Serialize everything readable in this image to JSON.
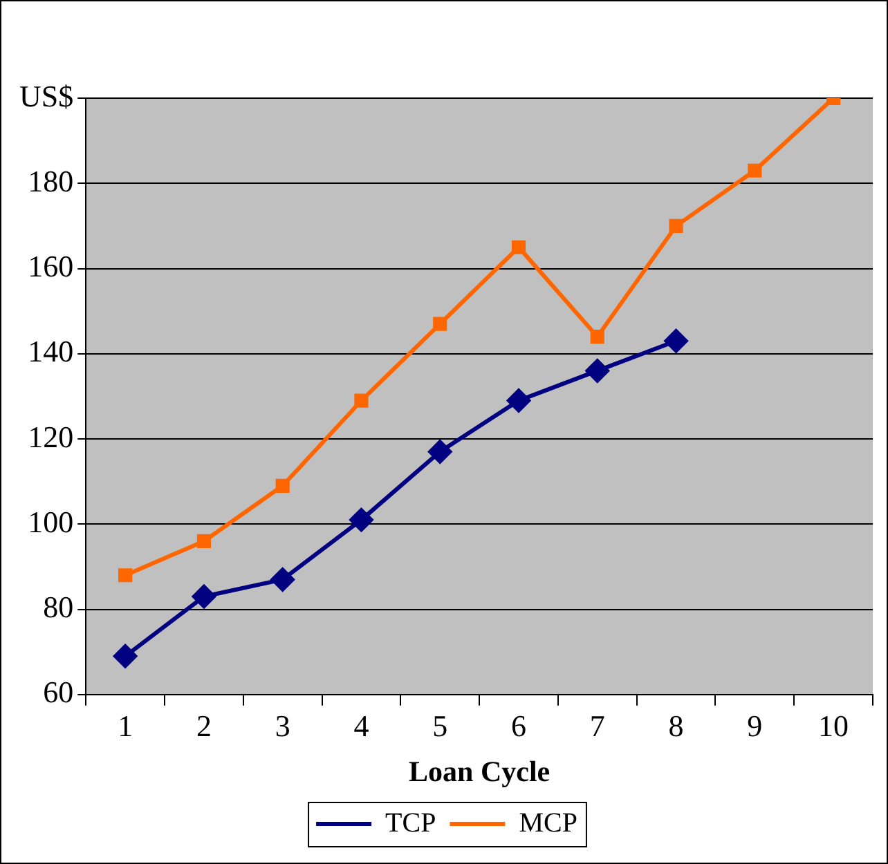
{
  "chart_data": {
    "type": "line",
    "xlabel": "Loan Cycle",
    "categories": [
      "1",
      "2",
      "3",
      "4",
      "5",
      "6",
      "7",
      "8",
      "9",
      "10"
    ],
    "series": [
      {
        "name": "TCP",
        "color": "#000080",
        "marker": "diamond",
        "values": [
          69,
          83,
          87,
          101,
          117,
          129,
          136,
          143,
          null,
          null
        ]
      },
      {
        "name": "MCP",
        "color": "#ff6600",
        "marker": "square",
        "values": [
          88,
          96,
          109,
          129,
          147,
          165,
          144,
          170,
          183,
          200
        ]
      }
    ],
    "ylim": [
      60,
      200
    ],
    "yticks": [
      60,
      80,
      100,
      120,
      140,
      160,
      180,
      {
        "value": 200,
        "label": "US$"
      }
    ],
    "grid": "y",
    "legend": "bottom"
  }
}
